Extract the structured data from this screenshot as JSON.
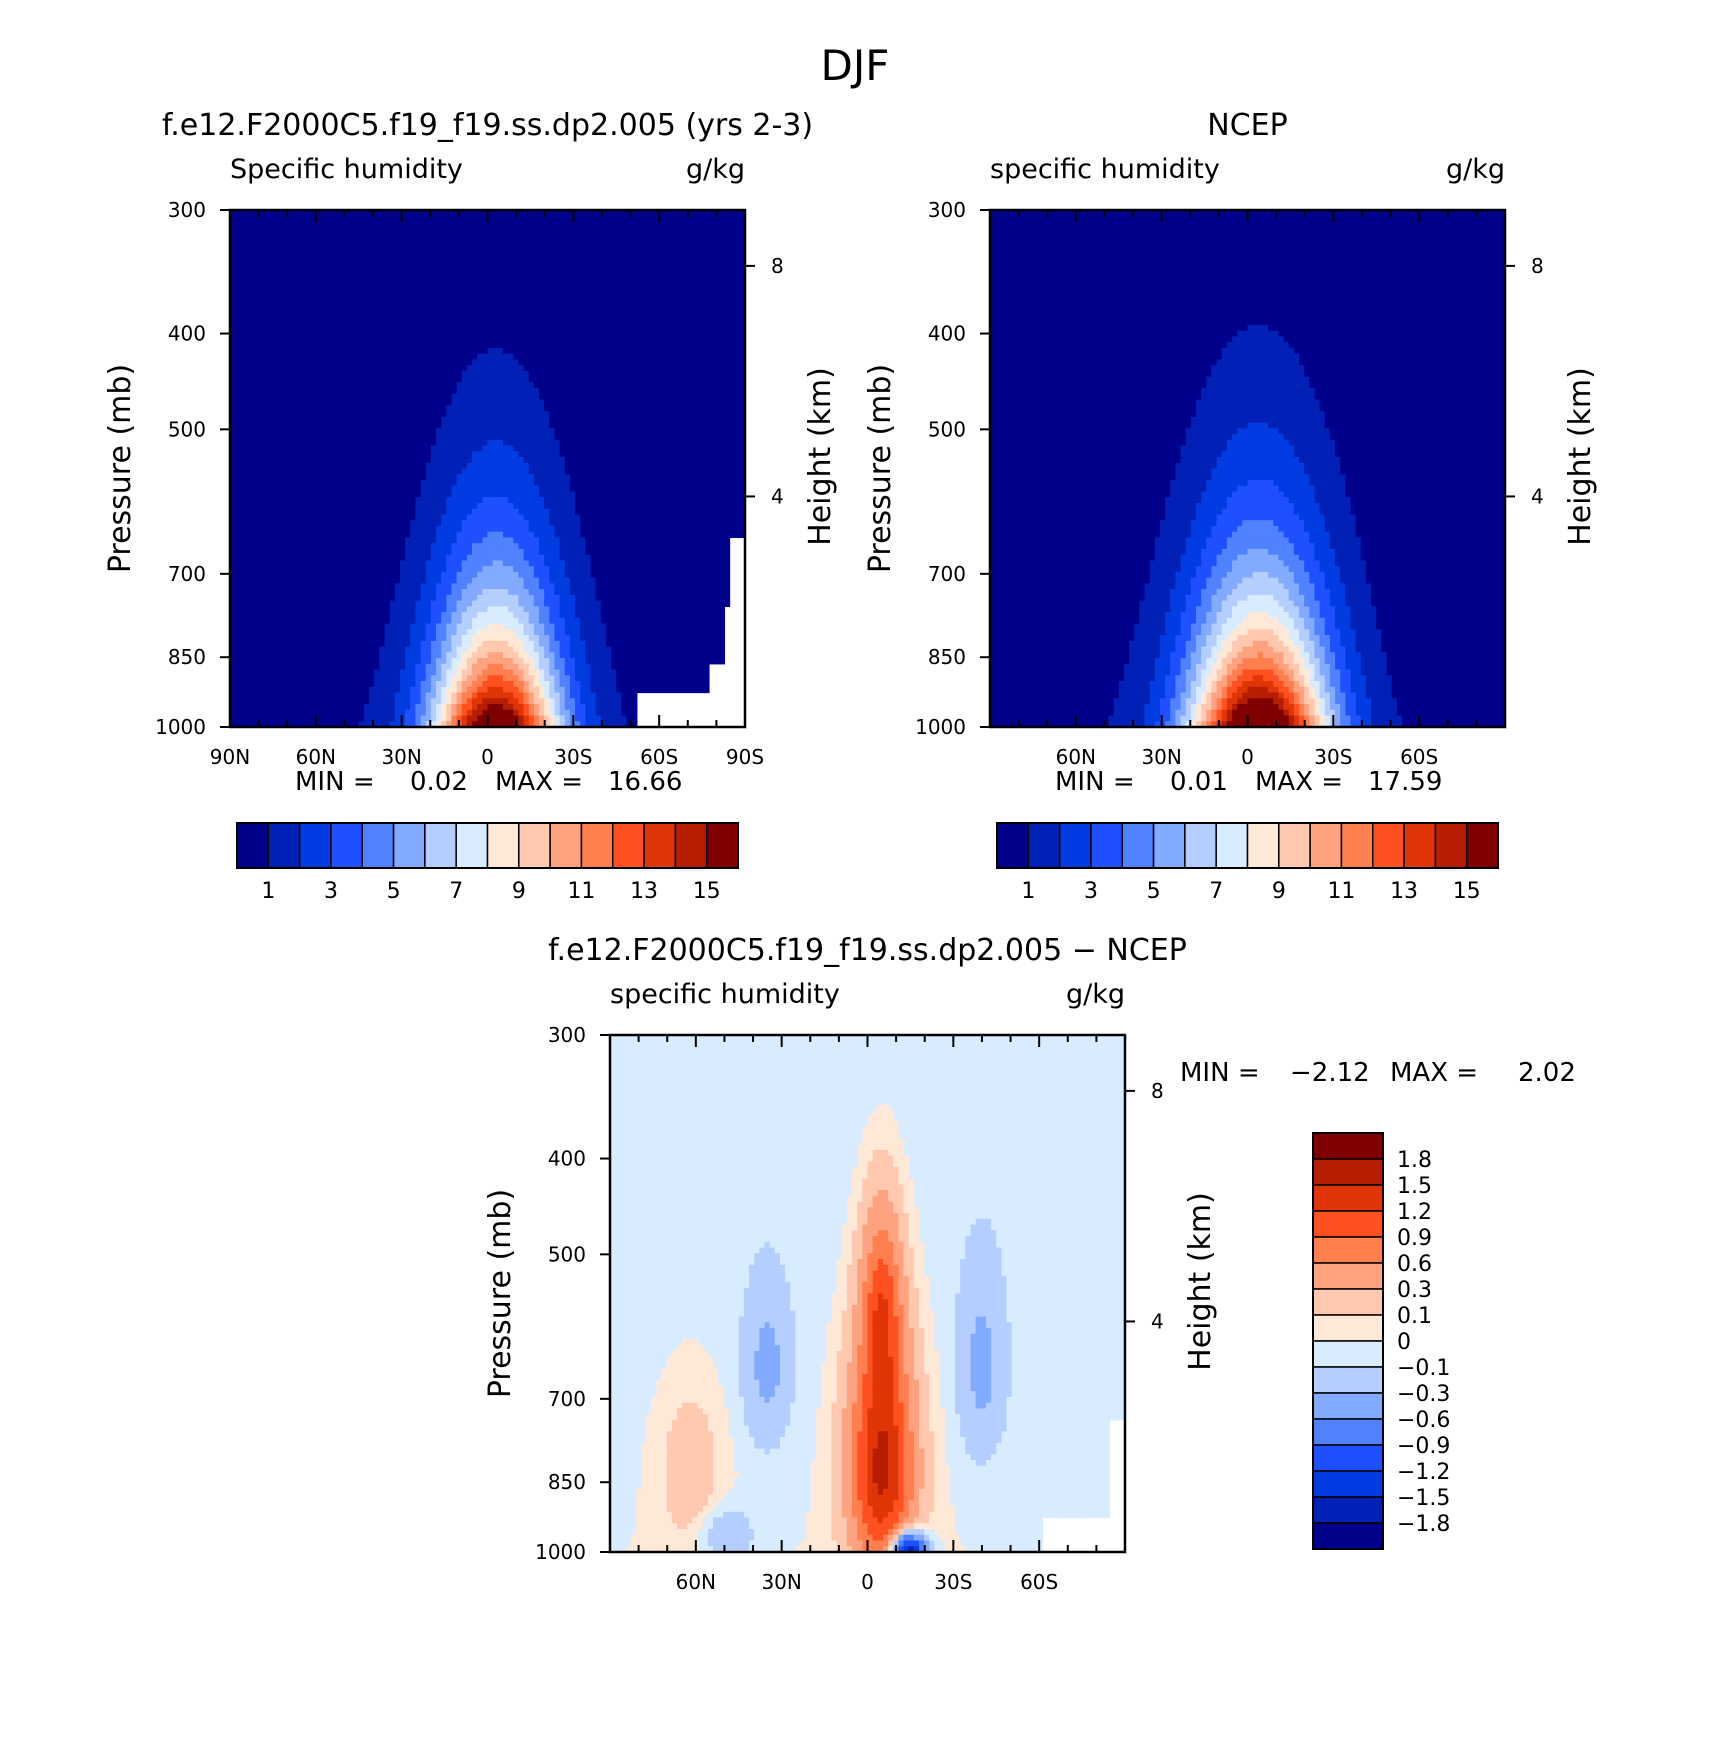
{
  "page_title": "DJF",
  "chart_data": [
    {
      "type": "heatmap",
      "panel": "model",
      "title": "f.e12.F2000C5.f19_f19.ss.dp2.005 (yrs 2-3)",
      "variable_label": "Specific humidity",
      "units": "g/kg",
      "ylabel": "Pressure (mb)",
      "ylabel_right": "Height (km)",
      "y_ticks": [
        "300",
        "400",
        "500",
        "700",
        "850",
        "1000"
      ],
      "y_right_ticks": [
        "8",
        "4"
      ],
      "x_ticks": [
        "90N",
        "60N",
        "30N",
        "0",
        "30S",
        "60S",
        "90S"
      ],
      "ylim": [
        1000,
        300
      ],
      "xlim": [
        "90N",
        "90S"
      ],
      "min_label": "MIN =",
      "min_value": "0.02",
      "max_label": "MAX =",
      "max_value": "16.66",
      "min": 0.02,
      "max": 16.66,
      "levels": [
        0,
        1,
        2,
        3,
        4,
        5,
        6,
        7,
        8,
        9,
        10,
        11,
        12,
        13,
        14,
        15
      ],
      "colorbar_labels": [
        "1",
        "3",
        "5",
        "7",
        "9",
        "11",
        "13",
        "15"
      ],
      "colors": [
        "#00008a",
        "#0020b6",
        "#003ce1",
        "#1e50ff",
        "#5082ff",
        "#82aaff",
        "#b4cfff",
        "#d9ecff",
        "#ffe9d6",
        "#ffc8af",
        "#ffa280",
        "#ff7f4f",
        "#ff5020",
        "#e03506",
        "#b51e00",
        "#7f0000"
      ]
    },
    {
      "type": "heatmap",
      "panel": "obs",
      "title": "NCEP",
      "variable_label": "specific humidity",
      "units": "g/kg",
      "ylabel": "Pressure (mb)",
      "ylabel_right": "Height (km)",
      "y_ticks": [
        "300",
        "400",
        "500",
        "700",
        "850",
        "1000"
      ],
      "y_right_ticks": [
        "8",
        "4"
      ],
      "x_ticks": [
        "60N",
        "30N",
        "0",
        "30S",
        "60S"
      ],
      "ylim": [
        1000,
        300
      ],
      "min_label": "MIN =",
      "min_value": "0.01",
      "max_label": "MAX =",
      "max_value": "17.59",
      "min": 0.01,
      "max": 17.59,
      "levels": [
        0,
        1,
        2,
        3,
        4,
        5,
        6,
        7,
        8,
        9,
        10,
        11,
        12,
        13,
        14,
        15
      ],
      "colorbar_labels": [
        "1",
        "3",
        "5",
        "7",
        "9",
        "11",
        "13",
        "15"
      ],
      "colors": [
        "#00008a",
        "#0020b6",
        "#003ce1",
        "#1e50ff",
        "#5082ff",
        "#82aaff",
        "#b4cfff",
        "#d9ecff",
        "#ffe9d6",
        "#ffc8af",
        "#ffa280",
        "#ff7f4f",
        "#ff5020",
        "#e03506",
        "#b51e00",
        "#7f0000"
      ]
    },
    {
      "type": "heatmap",
      "panel": "diff",
      "title": "f.e12.F2000C5.f19_f19.ss.dp2.005 − NCEP",
      "variable_label": "specific humidity",
      "units": "g/kg",
      "ylabel": "Pressure (mb)",
      "ylabel_right": "Height (km)",
      "y_ticks": [
        "300",
        "400",
        "500",
        "700",
        "850",
        "1000"
      ],
      "y_right_ticks": [
        "8",
        "4"
      ],
      "x_ticks": [
        "60N",
        "30N",
        "0",
        "30S",
        "60S"
      ],
      "ylim": [
        1000,
        300
      ],
      "min_label": "MIN =",
      "min_value": "−2.12",
      "max_label": "MAX =",
      "max_value": "2.02",
      "min": -2.12,
      "max": 2.02,
      "levels": [
        -1.8,
        -1.5,
        -1.2,
        -0.9,
        -0.6,
        -0.3,
        -0.1,
        0,
        0.1,
        0.3,
        0.6,
        0.9,
        1.2,
        1.5,
        1.8
      ],
      "colorbar_labels": [
        "1.8",
        "1.5",
        "1.2",
        "0.9",
        "0.6",
        "0.3",
        "0.1",
        "0",
        "−0.1",
        "−0.3",
        "−0.6",
        "−0.9",
        "−1.2",
        "−1.5",
        "−1.8"
      ],
      "colors_top_to_bottom": [
        "#7f0000",
        "#b51e00",
        "#e03506",
        "#ff5020",
        "#ff7f4f",
        "#ffa280",
        "#ffc8af",
        "#ffe9d6",
        "#d9ecff",
        "#b4cfff",
        "#82aaff",
        "#5082ff",
        "#1e50ff",
        "#003ce1",
        "#0020b6",
        "#00008a"
      ]
    }
  ]
}
